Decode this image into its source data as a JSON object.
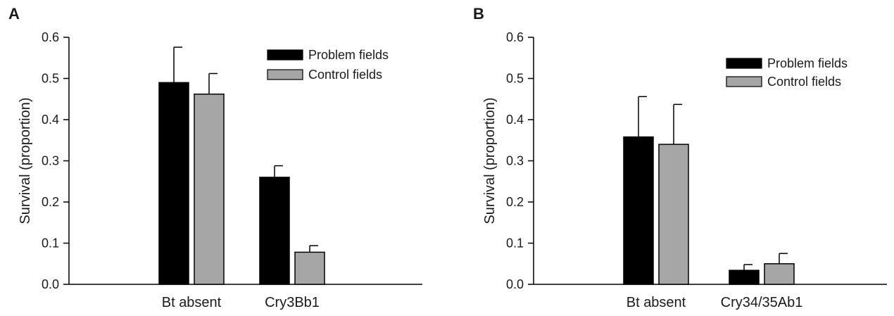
{
  "chart_data": [
    {
      "type": "bar",
      "panel_label": "A",
      "ylabel": "Survival (proportion)",
      "xlabel": "",
      "ylim": [
        0,
        0.6
      ],
      "yticks": [
        "0.0",
        "0.1",
        "0.2",
        "0.3",
        "0.4",
        "0.5",
        "0.6"
      ],
      "categories": [
        "Bt absent",
        "Cry3Bb1"
      ],
      "series": [
        {
          "name": "Problem fields",
          "values": [
            0.49,
            0.26
          ],
          "errors": [
            0.086,
            0.028
          ],
          "color": "#000000"
        },
        {
          "name": "Control fields",
          "values": [
            0.462,
            0.078
          ],
          "errors": [
            0.05,
            0.016
          ],
          "color": "#a6a6a6"
        }
      ],
      "legend": "top-right",
      "grid": false
    },
    {
      "type": "bar",
      "panel_label": "B",
      "ylabel": "Survival (proportion)",
      "xlabel": "",
      "ylim": [
        0,
        0.6
      ],
      "yticks": [
        "0.0",
        "0.1",
        "0.2",
        "0.3",
        "0.4",
        "0.5",
        "0.6"
      ],
      "categories": [
        "Bt absent",
        "Cry34/35Ab1"
      ],
      "series": [
        {
          "name": "Problem fields",
          "values": [
            0.358,
            0.034
          ],
          "errors": [
            0.098,
            0.014
          ],
          "color": "#000000"
        },
        {
          "name": "Control fields",
          "values": [
            0.34,
            0.05
          ],
          "errors": [
            0.097,
            0.025
          ],
          "color": "#a6a6a6"
        }
      ],
      "legend": "top-right",
      "grid": false
    }
  ]
}
